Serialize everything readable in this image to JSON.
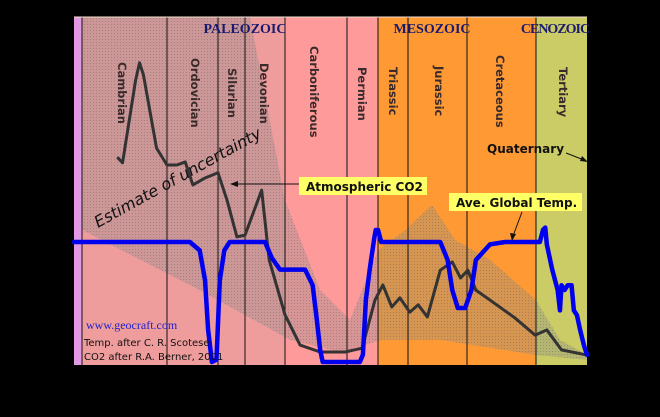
{
  "chart_data": {
    "type": "line",
    "title": "",
    "xlabel": "",
    "ylabel": "",
    "x_units_note": "",
    "eras": [
      {
        "name": "PALEOZOIC"
      },
      {
        "name": "MESOZOIC"
      },
      {
        "name": "CENOZOIC"
      }
    ],
    "periods": [
      {
        "name": "Cambrian",
        "start_ma": 570,
        "end_ma": 505,
        "color": "#ef9c9c"
      },
      {
        "name": "Ordovician",
        "start_ma": 505,
        "end_ma": 438,
        "color": "#ef9c9c"
      },
      {
        "name": "Silurian",
        "start_ma": 438,
        "end_ma": 408,
        "color": "#ef9c9c"
      },
      {
        "name": "Devonian",
        "start_ma": 408,
        "end_ma": 360,
        "color": "#ef9c9c"
      },
      {
        "name": "Carboniferous",
        "start_ma": 360,
        "end_ma": 286,
        "color": "#ff9a9a"
      },
      {
        "name": "Permian",
        "start_ma": 286,
        "end_ma": 245,
        "color": "#ff9a9a"
      },
      {
        "name": "Triassic",
        "start_ma": 245,
        "end_ma": 208,
        "color": "#ff9933"
      },
      {
        "name": "Jurassic",
        "start_ma": 208,
        "end_ma": 144,
        "color": "#ff9933"
      },
      {
        "name": "Cretaceous",
        "start_ma": 144,
        "end_ma": 66,
        "color": "#ff9933"
      },
      {
        "name": "Tertiary",
        "start_ma": 66,
        "end_ma": 0,
        "color": "#cccc66"
      }
    ],
    "precambrian_color": "#e398e3",
    "xlim": [
      600,
      0
    ],
    "ylim_co2_ppm": [
      0,
      8000
    ],
    "ylim_temp_c": [
      8,
      27
    ],
    "series": [
      {
        "name": "Atmospheric CO2",
        "color": "#333333",
        "x_ma": [
          543,
          539,
          529,
          526,
          523,
          513,
          505,
          492,
          481,
          471,
          455,
          438,
          428,
          417,
          408,
          388,
          379,
          360,
          342,
          318,
          288,
          276,
          266,
          249,
          239,
          228,
          218,
          206,
          197,
          187,
          173,
          160,
          151,
          143,
          134,
          118,
          90,
          67,
          52,
          33,
          0
        ],
        "y_ppm": [
          4800,
          4670,
          6580,
          6980,
          6700,
          5010,
          4620,
          4620,
          4690,
          4160,
          4320,
          4440,
          3810,
          2960,
          3000,
          4040,
          2430,
          1160,
          460,
          300,
          300,
          350,
          390,
          1500,
          1850,
          1340,
          1550,
          1220,
          1390,
          1110,
          2190,
          2380,
          2010,
          2190,
          1730,
          1500,
          1090,
          690,
          810,
          350,
          230
        ]
      },
      {
        "name": "Ave. Global Temp.",
        "color": "#0000ee",
        "x_ma": [
          600,
          475,
          462,
          455,
          451,
          446,
          440,
          436,
          431,
          425,
          384,
          376,
          366,
          336,
          327,
          322,
          318,
          315,
          269,
          265,
          261,
          256,
          250,
          248,
          245,
          241,
          173,
          165,
          160,
          154,
          146,
          139,
          134,
          118,
          101,
          61,
          57,
          54,
          52,
          45,
          38,
          35,
          33,
          29,
          25,
          20,
          17,
          13,
          9,
          4,
          0
        ],
        "y_c": [
          22,
          22,
          21.3,
          18.8,
          14.7,
          12,
          12.2,
          18.8,
          21.3,
          22,
          22,
          20.7,
          19.7,
          19.7,
          18.4,
          15.5,
          13,
          12,
          12,
          12.6,
          17.2,
          19.7,
          22.3,
          23,
          23,
          22,
          22,
          20.5,
          18,
          16.5,
          16.5,
          18,
          20.5,
          21.8,
          22,
          22,
          23,
          23.2,
          21.8,
          19.7,
          18,
          16.3,
          18.4,
          18,
          18.4,
          18.4,
          16.3,
          15.9,
          14.7,
          13.4,
          12.6
        ]
      }
    ],
    "uncertainty_band": {
      "label": "Estimate of uncertainty",
      "upper": {
        "x_ma": [
          570,
          402,
          360,
          318,
          282,
          245,
          211,
          182,
          157,
          118,
          66,
          35,
          0
        ],
        "y_ppm": [
          8040,
          8040,
          3810,
          1730,
          1040,
          2650,
          3120,
          3700,
          2890,
          2430,
          1500,
          580,
          230
        ]
      },
      "lower": {
        "x_ma": [
          570,
          462,
          354,
          294,
          240,
          173,
          66,
          0
        ],
        "y_ppm": [
          3120,
          1730,
          580,
          300,
          580,
          580,
          230,
          115
        ]
      }
    },
    "annotations": {
      "co2_label": "Atmospheric CO2",
      "temp_label": "Ave. Global Temp.",
      "quaternary": "Quaternary",
      "website": "www.geocraft.com",
      "credit_temp": "Temp. after C. R. Scotese",
      "credit_co2": "CO2 after R.A. Berner, 2001"
    },
    "grid": false,
    "legend": "none"
  }
}
